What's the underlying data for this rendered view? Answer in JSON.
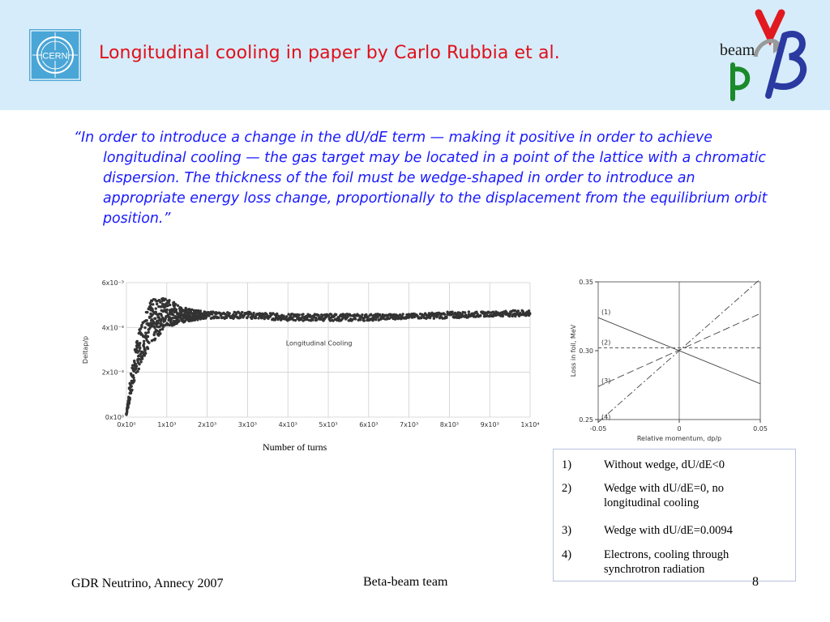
{
  "header": {
    "title": "Longitudinal cooling in paper by Carlo Rubbia et al.",
    "cern_logo_text": "CERN",
    "brand_text": "beam",
    "colors": {
      "band": "#d6ecfa",
      "title": "#e0101a",
      "cern": "#4aa6d6"
    }
  },
  "quote": {
    "text": "“In order to introduce a change in the dU/dE term — making it positive in order to achieve longitudinal cooling — the gas target may be located in a point of the lattice with a chromatic dispersion. The thickness of the foil must be wedge-shaped in order to introduce an appropriate energy loss change, proportionally to the displacement from the equilibrium orbit position.”",
    "color": "#1a1aff"
  },
  "chart_data": [
    {
      "type": "scatter",
      "title": "",
      "annotation": "Longitudinal Cooling",
      "xlabel": "Number of turns",
      "ylabel": "Deltap/p",
      "ylim": [
        0,
        0.006
      ],
      "xlim": [
        0,
        10000
      ],
      "yticks": [
        "0x10⁰",
        "2x10⁻³",
        "4x10⁻³",
        "6x10⁻³"
      ],
      "ytick_values": [
        0,
        0.002,
        0.004,
        0.006
      ],
      "xticks": [
        "0x10⁰",
        "1x10³",
        "2x10³",
        "3x10³",
        "4x10³",
        "5x10³",
        "6x10³",
        "7x10³",
        "8x10³",
        "9x10³",
        "1x10⁴"
      ],
      "xtick_values": [
        0,
        1000,
        2000,
        3000,
        4000,
        5000,
        6000,
        7000,
        8000,
        9000,
        10000
      ],
      "grid": true,
      "series": [
        {
          "envelope": {
            "x": [
              0,
              100,
              200,
              400,
              600,
              800,
              1000,
              1300,
              1600,
              2000,
              3000,
              4000,
              5000,
              6000,
              7000,
              8000,
              9000,
              10000
            ],
            "upper": [
              0.0002,
              0.0018,
              0.003,
              0.0045,
              0.0052,
              0.0054,
              0.0053,
              0.005,
              0.0048,
              0.0047,
              0.0047,
              0.0046,
              0.0046,
              0.0046,
              0.0046,
              0.0047,
              0.0047,
              0.0048
            ],
            "lower": [
              0.0001,
              0.0008,
              0.0016,
              0.0026,
              0.0032,
              0.0036,
              0.004,
              0.0042,
              0.0043,
              0.0044,
              0.0044,
              0.0043,
              0.0043,
              0.0043,
              0.0044,
              0.0044,
              0.0045,
              0.0045
            ]
          }
        }
      ]
    },
    {
      "type": "line",
      "title": "",
      "xlabel": "Relative momentum, dp/p",
      "ylabel": "Loss in foil, MeV",
      "xlim": [
        -0.05,
        0.05
      ],
      "ylim": [
        0.25,
        0.35
      ],
      "xticks": [
        "-0.05",
        "0",
        "0.05"
      ],
      "xtick_values": [
        -0.05,
        0,
        0.05
      ],
      "yticks": [
        "0.25",
        "0.30",
        "0.35"
      ],
      "ytick_values": [
        0.25,
        0.3,
        0.35
      ],
      "series": [
        {
          "name": "(1)",
          "style": "solid",
          "x": [
            -0.05,
            0.05
          ],
          "y": [
            0.324,
            0.276
          ]
        },
        {
          "name": "(2)",
          "style": "dashed",
          "x": [
            -0.05,
            0.05
          ],
          "y": [
            0.302,
            0.302
          ]
        },
        {
          "name": "(3)",
          "style": "longdash",
          "x": [
            -0.05,
            0.05
          ],
          "y": [
            0.274,
            0.327
          ]
        },
        {
          "name": "(4)",
          "style": "dashdot",
          "x": [
            -0.05,
            0.05
          ],
          "y": [
            0.248,
            0.352
          ]
        }
      ]
    }
  ],
  "legend": {
    "items": [
      {
        "num": "1)",
        "text": "Without wedge, dU/dE<0"
      },
      {
        "num": "2)",
        "text": "Wedge with dU/dE=0, no longitudinal cooling"
      },
      {
        "num": "3)",
        "text": "Wedge with dU/dE=0.0094"
      },
      {
        "num": "4)",
        "text": "Electrons, cooling through synchrotron radiation"
      }
    ]
  },
  "footer": {
    "left": "GDR Neutrino, Annecy 2007",
    "center": "Beta-beam team",
    "page": "8"
  }
}
